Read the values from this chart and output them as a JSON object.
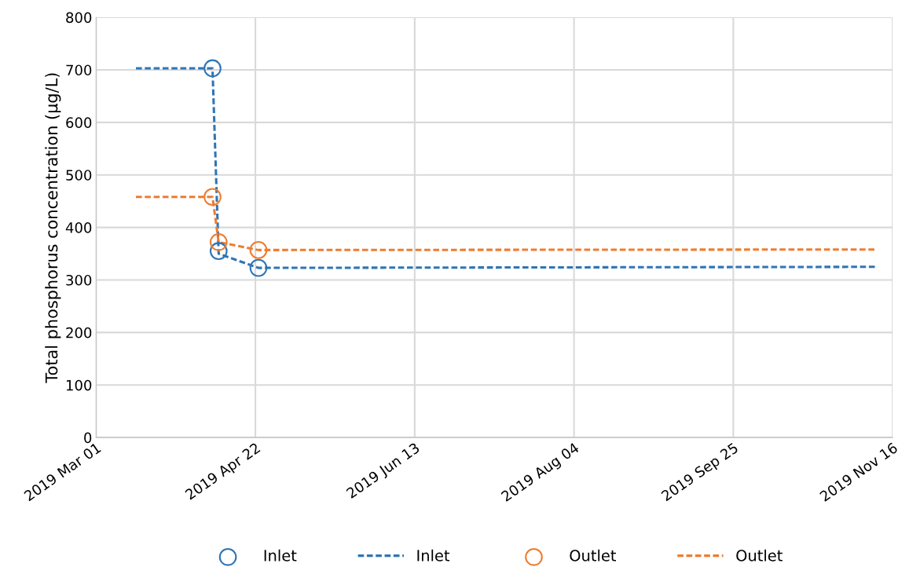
{
  "chart_data": {
    "type": "scatter",
    "ylabel": "Total phosphorus concentration (µg/L)",
    "xlim": [
      "2019-03-01",
      "2019-11-16"
    ],
    "xticks": [
      {
        "value": "2019-03-01",
        "label": "2019 Mar 01"
      },
      {
        "value": "2019-04-22",
        "label": "2019 Apr 22"
      },
      {
        "value": "2019-06-13",
        "label": "2019 Jun 13"
      },
      {
        "value": "2019-08-04",
        "label": "2019 Aug 04"
      },
      {
        "value": "2019-09-25",
        "label": "2019 Sep 25"
      },
      {
        "value": "2019-11-16",
        "label": "2019 Nov 16"
      }
    ],
    "ylim": [
      0,
      800
    ],
    "yticks": [
      0,
      100,
      200,
      300,
      400,
      500,
      600,
      700,
      800
    ],
    "grid": true,
    "legend": "bottom",
    "series": [
      {
        "name": "Inlet",
        "marker": "circle",
        "color": "#2e75b6",
        "x": [
          "2019-04-08",
          "2019-04-10",
          "2019-04-23"
        ],
        "values": [
          703,
          355,
          323
        ]
      },
      {
        "name": "Inlet",
        "type": "line",
        "line_style": "dashed",
        "marker": "none",
        "color": "#2e75b6",
        "x": [
          "2019-03-14",
          "2019-04-08",
          "2019-04-10",
          "2019-04-23",
          "2019-11-11"
        ],
        "values": [
          703,
          703,
          350,
          323,
          325
        ]
      },
      {
        "name": "Outlet",
        "marker": "circle",
        "color": "#ed7d31",
        "x": [
          "2019-04-08",
          "2019-04-10",
          "2019-04-23"
        ],
        "values": [
          458,
          372,
          357
        ]
      },
      {
        "name": "Outlet",
        "type": "line",
        "line_style": "dashed",
        "marker": "none",
        "color": "#ed7d31",
        "x": [
          "2019-03-14",
          "2019-04-08",
          "2019-04-10",
          "2019-04-23",
          "2019-11-11"
        ],
        "values": [
          458,
          458,
          372,
          357,
          358
        ]
      }
    ]
  }
}
